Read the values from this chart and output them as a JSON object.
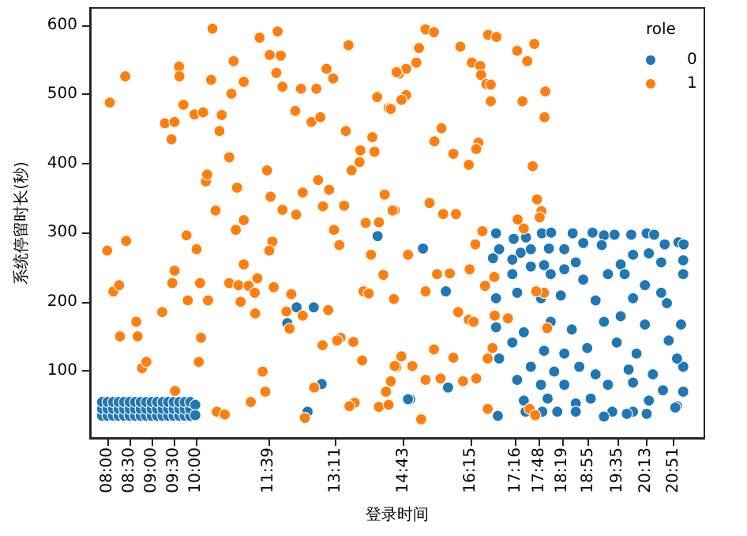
{
  "chart_data": {
    "type": "scatter",
    "xlabel": "登录时间",
    "ylabel": "系统停留时长(秒)",
    "legend_title": "role",
    "legend": "top right",
    "marker": "circle",
    "grid": false,
    "xlim": [
      7.6,
      21.55
    ],
    "ylim": [
      3,
      625
    ],
    "xticks": [
      {
        "value": 8,
        "label": "08:00"
      },
      {
        "value": 8.5,
        "label": "08:30"
      },
      {
        "value": 9,
        "label": "09:00"
      },
      {
        "value": 9.5,
        "label": "09:30"
      },
      {
        "value": 10,
        "label": "10:00"
      },
      {
        "value": 11.65,
        "label": "11:39"
      },
      {
        "value": 13.1833,
        "label": "13:11"
      },
      {
        "value": 14.7167,
        "label": "14:43"
      },
      {
        "value": 16.25,
        "label": "16:15"
      },
      {
        "value": 17.2667,
        "label": "17:16"
      },
      {
        "value": 17.8,
        "label": "17:48"
      },
      {
        "value": 18.3167,
        "label": "18:19"
      },
      {
        "value": 18.9167,
        "label": "18:55"
      },
      {
        "value": 19.5833,
        "label": "19:35"
      },
      {
        "value": 20.2167,
        "label": "20:13"
      },
      {
        "value": 20.85,
        "label": "20:51"
      }
    ],
    "yticks": [
      100,
      200,
      300,
      400,
      500,
      600
    ],
    "series": [
      {
        "name": "0",
        "color": "#1f77b4",
        "x": [
          7.875,
          7.875,
          7.875,
          8,
          8,
          8,
          8.125,
          8.125,
          8.125,
          8.25,
          8.25,
          8.25,
          8.375,
          8.375,
          8.375,
          8.5,
          8.5,
          8.5,
          8.625,
          8.625,
          8.625,
          8.75,
          8.75,
          8.75,
          8.875,
          8.875,
          8.875,
          9,
          9,
          9,
          9.125,
          9.125,
          9.125,
          9.25,
          9.25,
          9.25,
          9.375,
          9.375,
          9.375,
          9.5,
          9.5,
          9.5,
          9.625,
          9.625,
          9.625,
          9.75,
          9.75,
          9.75,
          9.875,
          9.875,
          9.875,
          9.99,
          9.99,
          12.29,
          12.68,
          12.08,
          12.86,
          12.54,
          14.87,
          14.13,
          15.16,
          15.68,
          14.82,
          15.73,
          16.82,
          17.22,
          17.5,
          17.86,
          18.07,
          18.56,
          19.01,
          19.27,
          19.51,
          19.89,
          20.24,
          20.41,
          20.65,
          20.96,
          21.08,
          16.89,
          17.38,
          17.61,
          18.02,
          18.37,
          18.8,
          19.22,
          19.93,
          20.29,
          20.57,
          21.07,
          17.19,
          17.91,
          18.63,
          19.65,
          16.75,
          17.19,
          17.61,
          18.06,
          18.37,
          18.8,
          19.36,
          19.74,
          20.2,
          20.57,
          21.07,
          17.3,
          17.84,
          18.29,
          19.08,
          19.93,
          20.7,
          16.82,
          17.45,
          18.06,
          18.54,
          19.27,
          19.65,
          20.2,
          21.02,
          17.19,
          17.91,
          18.37,
          18.89,
          19.56,
          20.01,
          20.74,
          17.61,
          18.14,
          18.71,
          19.08,
          19.83,
          20.38,
          21.07,
          17.3,
          17.84,
          18.37,
          19.36,
          19.93,
          20.61,
          21.07,
          17.45,
          17.99,
          18.63,
          18.97,
          19.46,
          19.93,
          20.29,
          20.93,
          16.86,
          17.49,
          17.87,
          18.21,
          18.63,
          19.27,
          19.79,
          20.24,
          20.89,
          16.89,
          16.82,
          20.93
        ],
        "values": [
          35,
          45,
          55,
          35,
          45,
          55,
          35,
          45,
          55,
          35,
          45,
          55,
          35,
          45,
          55,
          35,
          45,
          55,
          35,
          45,
          55,
          35,
          45,
          55,
          35,
          45,
          55,
          35,
          45,
          55,
          35,
          45,
          55,
          35,
          45,
          55,
          35,
          45,
          55,
          35,
          45,
          55,
          35,
          45,
          55,
          35,
          45,
          55,
          35,
          45,
          55,
          51,
          36,
          192,
          192,
          169,
          81,
          41,
          59,
          295,
          277,
          215,
          59,
          76,
          299,
          291,
          293,
          299,
          300,
          299,
          300,
          296,
          297,
          297,
          299,
          297,
          283,
          286,
          283,
          276,
          271,
          276,
          277,
          276,
          285,
          282,
          268,
          270,
          257,
          260,
          261,
          253,
          257,
          254,
          263,
          240,
          251,
          240,
          247,
          232,
          240,
          240,
          224,
          213,
          240,
          213,
          205,
          209,
          202,
          205,
          198,
          163,
          156,
          171,
          160,
          171,
          179,
          167,
          167,
          141,
          129,
          125,
          133,
          141,
          125,
          144,
          106,
          99,
          106,
          95,
          102,
          95,
          106,
          87,
          80,
          80,
          80,
          83,
          72,
          70,
          57,
          60,
          53,
          60,
          41,
          41,
          57,
          49,
          35,
          41,
          41,
          41,
          41,
          34,
          38,
          38,
          47,
          118,
          205,
          118
        ]
      },
      {
        "name": "1",
        "color": "#ff7f0e",
        "x": [
          8.05,
          8.4,
          7.99,
          8.42,
          9.3,
          9.52,
          9.45,
          9.62,
          9.63,
          9.72,
          9.79,
          9.97,
          10.17,
          10.59,
          10.54,
          10.76,
          10.23,
          10.26,
          10.45,
          10.94,
          10.38,
          10.35,
          10.81,
          10.86,
          11.09,
          11.45,
          11.86,
          11.68,
          11.93,
          11.83,
          11.97,
          12.39,
          12.74,
          12.26,
          12.63,
          12.83,
          12.97,
          13.12,
          13.47,
          13.41,
          14.01,
          13.74,
          14.06,
          13.54,
          13.72,
          11.62,
          11.7,
          12.43,
          12.78,
          13.03,
          13.37,
          12.89,
          11.97,
          12.28,
          13.14,
          11.09,
          10.91,
          11.74,
          11.67,
          10.02,
          13.26,
          13.86,
          14.16,
          14.29,
          14.52,
          13.98,
          14.38,
          14.12,
          14.62,
          15.22,
          15.41,
          15.07,
          16.01,
          16.64,
          16.83,
          17.3,
          17.69,
          17.53,
          16.27,
          16.46,
          16.48,
          16.6,
          16.7,
          14.78,
          14.56,
          15.01,
          14.78,
          14.67,
          14.43,
          16.7,
          17.42,
          17.94,
          17.92,
          15.58,
          15.42,
          16.42,
          16.37,
          15.85,
          16.2,
          17.65,
          17.75,
          17.85,
          17.81,
          15.31,
          15.62,
          15.91,
          14.47,
          17.31,
          17.45,
          16.51,
          16.35,
          14.82,
          8.13,
          8.26,
          8.28,
          8.65,
          8.68,
          8.78,
          8.88,
          9.24,
          9.47,
          9.52,
          9.53,
          9.82,
          10.12,
          10.07,
          10.28,
          10.1,
          10.48,
          10.66,
          11.09,
          10.76,
          10.97,
          11.02,
          11.2,
          11.34,
          11.4,
          11.35,
          11.52,
          11.58,
          11.25,
          11.77,
          12.13,
          12.06,
          12.43,
          12.17,
          12.48,
          12.69,
          12.88,
          13.01,
          13.29,
          13.21,
          13.58,
          13.78,
          13.81,
          13.93,
          13.61,
          13.49,
          14.26,
          14.5,
          14.56,
          14.32,
          14.16,
          14.38,
          14.67,
          14.92,
          14.43,
          15.48,
          15.77,
          16.22,
          15.22,
          16.57,
          16.78,
          15.96,
          16.2,
          16.31,
          16.79,
          17.09,
          14.52,
          15.41,
          15.85,
          15.22,
          15.56,
          16.37,
          16.07,
          16.63,
          16.74,
          15.12,
          16.63,
          17.58,
          17.71,
          17.98,
          17.91,
          17.73
        ],
        "values": [
          488,
          526,
          274,
          288,
          458,
          460,
          435,
          540,
          526,
          485,
          296,
          471,
          474,
          470,
          447,
          409,
          374,
          384,
          332,
          365,
          595,
          521,
          501,
          548,
          518,
          582,
          591,
          557,
          556,
          531,
          511,
          508,
          508,
          476,
          460,
          467,
          537,
          523,
          571,
          447,
          438,
          419,
          417,
          390,
          402,
          390,
          352,
          358,
          376,
          362,
          339,
          338,
          333,
          326,
          304,
          318,
          304,
          287,
          274,
          276,
          282,
          314,
          315,
          355,
          332,
          268,
          480,
          496,
          530,
          594,
          590,
          567,
          569,
          586,
          583,
          563,
          573,
          548,
          546,
          541,
          528,
          515,
          514,
          537,
          532,
          546,
          499,
          492,
          479,
          490,
          490,
          504,
          467,
          451,
          432,
          430,
          421,
          414,
          398,
          396,
          348,
          331,
          322,
          343,
          327,
          327,
          332,
          319,
          306,
          302,
          283,
          268,
          215,
          224,
          150,
          171,
          150,
          104,
          113,
          185,
          227,
          245,
          71,
          202,
          148,
          113,
          202,
          227,
          41,
          37,
          254,
          227,
          224,
          200,
          223,
          213,
          234,
          183,
          99,
          70,
          55,
          221,
          161,
          186,
          180,
          211,
          32,
          76,
          137,
          188,
          148,
          144,
          142,
          115,
          215,
          212,
          54,
          49,
          239,
          204,
          106,
          70,
          48,
          51,
          121,
          107,
          85,
          240,
          241,
          247,
          215,
          223,
          236,
          185,
          174,
          171,
          180,
          176,
          107,
          131,
          119,
          87,
          89,
          89,
          85,
          118,
          133,
          30,
          45,
          45,
          36,
          162,
          213,
          215
        ]
      }
    ]
  }
}
